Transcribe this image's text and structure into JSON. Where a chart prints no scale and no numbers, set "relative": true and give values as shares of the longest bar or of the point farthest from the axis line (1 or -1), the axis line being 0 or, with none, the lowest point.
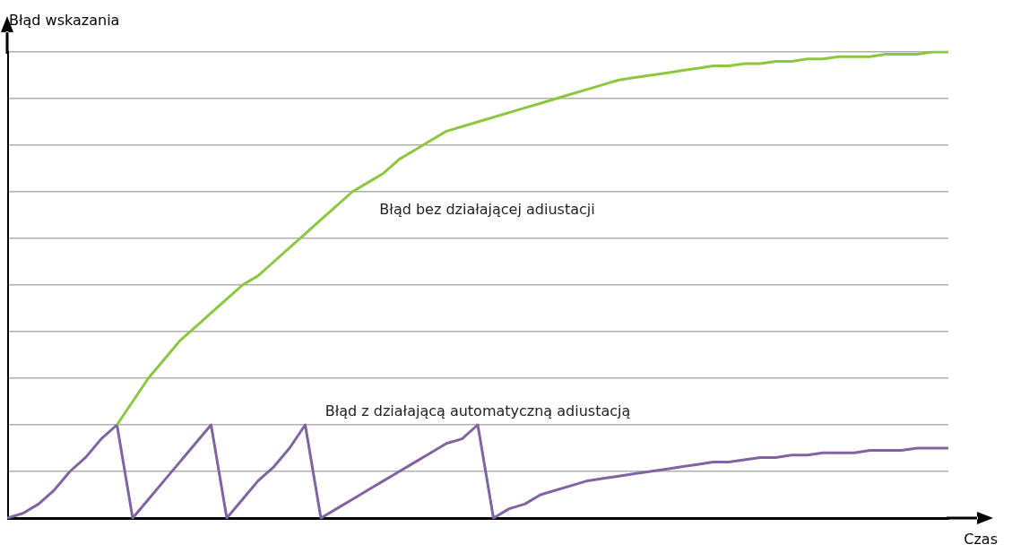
{
  "chart_data": {
    "type": "line",
    "relative": true,
    "xlabel": "Czas",
    "ylabel": "Błąd wskazania",
    "grid": "y",
    "legend": false,
    "marker": "none",
    "line_style": "solid",
    "categories": [
      null,
      null,
      null,
      null,
      null,
      null,
      null,
      null,
      null,
      null,
      null,
      null,
      null,
      null,
      null,
      null,
      null,
      null,
      null,
      null,
      null,
      null,
      null,
      null,
      null,
      null,
      null,
      null,
      null,
      null,
      null,
      null,
      null,
      null,
      null,
      null,
      null,
      null,
      null,
      null,
      null,
      null,
      null,
      null,
      null,
      null,
      null,
      null,
      null,
      null,
      null,
      null,
      null,
      null,
      null,
      null,
      null,
      null,
      null,
      null,
      null
    ],
    "series": [
      {
        "name": "Błąd bez działającej adiustacji",
        "color": "#8dc63f",
        "values": [
          null,
          null,
          null,
          null,
          null,
          null,
          null,
          0.2,
          0.25,
          0.3,
          0.34,
          0.38,
          0.41,
          0.44,
          0.47,
          0.5,
          0.52,
          0.55,
          0.58,
          0.61,
          0.64,
          0.67,
          0.7,
          0.72,
          0.74,
          0.77,
          0.79,
          0.81,
          0.83,
          0.84,
          0.85,
          0.86,
          0.87,
          0.88,
          0.89,
          0.9,
          0.91,
          0.92,
          0.93,
          0.94,
          0.945,
          0.95,
          0.955,
          0.96,
          0.965,
          0.97,
          0.97,
          0.975,
          0.975,
          0.98,
          0.98,
          0.985,
          0.985,
          0.99,
          0.99,
          0.99,
          0.995,
          0.995,
          0.995,
          1,
          1
        ]
      },
      {
        "name": "Błąd z działającą automatyczną adiustacją",
        "color": "#8064a2",
        "values": [
          0,
          0.01,
          0.03,
          0.06,
          0.1,
          0.13,
          0.17,
          0.2,
          0,
          0.04,
          0.08,
          0.12,
          0.16,
          0.2,
          0,
          0.04,
          0.08,
          0.11,
          0.15,
          0.2,
          0,
          0.02,
          0.04,
          0.06,
          0.08,
          0.1,
          0.12,
          0.14,
          0.16,
          0.17,
          0.2,
          0,
          0.02,
          0.03,
          0.05,
          0.06,
          0.07,
          0.08,
          0.085,
          0.09,
          0.095,
          0.1,
          0.105,
          0.11,
          0.115,
          0.12,
          0.12,
          0.125,
          0.13,
          0.13,
          0.135,
          0.135,
          0.14,
          0.14,
          0.14,
          0.145,
          0.145,
          0.145,
          0.15,
          0.15,
          0.15
        ]
      }
    ]
  }
}
